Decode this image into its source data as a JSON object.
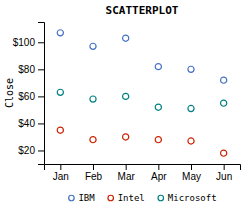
{
  "chart_data": {
    "type": "scatter",
    "title": "SCATTERPLOT",
    "ylabel": "Close",
    "categories": [
      "Jan",
      "Feb",
      "Mar",
      "Apr",
      "May",
      "Jun"
    ],
    "series": [
      {
        "name": "IBM",
        "color": "#4472C4",
        "values": [
          107,
          97,
          103,
          82,
          80,
          72
        ]
      },
      {
        "name": "Intel",
        "color": "#CC2200",
        "values": [
          35,
          28,
          30,
          28,
          27,
          18
        ]
      },
      {
        "name": "Microsoft",
        "color": "#008080",
        "values": [
          63,
          58,
          60,
          52,
          51,
          55
        ]
      }
    ],
    "ylim": [
      10,
      115
    ],
    "yticks": [
      {
        "value": 20,
        "label": "$20"
      },
      {
        "value": 40,
        "label": "$40"
      },
      {
        "value": 60,
        "label": "$60"
      },
      {
        "value": 80,
        "label": "$80"
      },
      {
        "value": 100,
        "label": "$100"
      }
    ],
    "marker": "o",
    "legend": "bottom",
    "grid": false
  }
}
